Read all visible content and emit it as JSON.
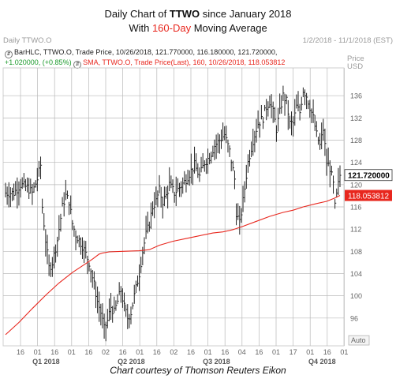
{
  "title": {
    "prefix": "Daily Chart of ",
    "ticker": "TTWO",
    "suffix": " since January 2018",
    "line2_prefix": "With ",
    "line2_highlight": "160-Day",
    "line2_suffix": " Moving Average"
  },
  "header": {
    "left": "Daily TTWO.O",
    "right": "1/2/2018 - 11/1/2018 (EST)",
    "price_unit_line1": "Price",
    "price_unit_line2": "USD"
  },
  "legend": {
    "bar_line1": "BarHLC, TTWO.O, Trade Price, 10/26/2018, 121.770000, 116.180000, 121.720000,",
    "bar_line2_change": "+1.020000, (+0.85%)",
    "sma_text": "SMA, TTWO.O, Trade Price(Last), 160, 10/26/2018, 118.053812"
  },
  "auto_label": "Auto",
  "footer": "Chart courtesy of Thomson Reuters Eikon",
  "colors": {
    "sma_line": "#e8271e",
    "bars": "#222222",
    "grid": "#b9b9b9",
    "last_price_bg": "#ffffff",
    "sma_label_bg": "#e8271e"
  },
  "chart_data": {
    "type": "bar",
    "style": "HLC bars",
    "ylim": [
      91,
      141
    ],
    "yticks": [
      96,
      100,
      104,
      108,
      112,
      116,
      120,
      124,
      128,
      132,
      136
    ],
    "xticks": [
      "16",
      "01",
      "16",
      "01",
      "16",
      "02",
      "16",
      "01",
      "16",
      "02",
      "16",
      "01",
      "16",
      "04",
      "16",
      "01",
      "17",
      "01",
      "16",
      "01"
    ],
    "quarter_labels": [
      "Q1 2018",
      "Q2 2018",
      "Q3 2018",
      "Q4 2018"
    ],
    "last_price_label": "121.720000",
    "sma_label": "118.053812",
    "grid": true,
    "series": [
      {
        "name": "SMA, TTWO.O, Trade Price(Last), 160",
        "kind": "line",
        "points": [
          [
            0,
            93
          ],
          [
            8,
            95.2
          ],
          [
            16,
            97.7
          ],
          [
            24,
            100.1
          ],
          [
            32,
            102.3
          ],
          [
            40,
            104.2
          ],
          [
            48,
            105.8
          ],
          [
            52,
            106.6
          ],
          [
            56,
            107.5
          ],
          [
            58,
            107.7
          ],
          [
            62,
            107.9
          ],
          [
            70,
            108.0
          ],
          [
            80,
            108.1
          ],
          [
            86,
            108.3
          ],
          [
            92,
            109.1
          ],
          [
            100,
            109.8
          ],
          [
            108,
            110.3
          ],
          [
            116,
            110.8
          ],
          [
            124,
            111.3
          ],
          [
            130,
            111.5
          ],
          [
            136,
            111.9
          ],
          [
            142,
            112.5
          ],
          [
            150,
            113.4
          ],
          [
            158,
            114.3
          ],
          [
            166,
            115.0
          ],
          [
            172,
            115.4
          ],
          [
            178,
            116.0
          ],
          [
            186,
            116.6
          ],
          [
            192,
            117.0
          ],
          [
            197,
            117.6
          ],
          [
            200,
            118.054
          ]
        ]
      },
      {
        "name": "BarHLC, TTWO.O, Trade Price",
        "kind": "hlc",
        "anchors": [
          [
            0,
            118.5
          ],
          [
            5,
            118.5
          ],
          [
            9,
            120
          ],
          [
            13,
            119.5
          ],
          [
            16,
            118.5
          ],
          [
            19,
            121
          ],
          [
            21,
            123.5
          ],
          [
            22,
            116
          ],
          [
            24,
            110
          ],
          [
            26,
            105
          ],
          [
            28,
            106
          ],
          [
            31,
            110
          ],
          [
            34,
            116
          ],
          [
            36,
            118
          ],
          [
            38,
            117
          ],
          [
            40,
            113
          ],
          [
            42,
            111
          ],
          [
            46,
            109
          ],
          [
            50,
            106
          ],
          [
            53,
            102
          ],
          [
            55,
            99
          ],
          [
            57,
            97
          ],
          [
            59,
            94
          ],
          [
            61,
            95.5
          ],
          [
            63,
            98
          ],
          [
            65,
            97
          ],
          [
            67,
            99
          ],
          [
            69,
            101
          ],
          [
            71,
            98
          ],
          [
            73,
            96
          ],
          [
            75,
            97
          ],
          [
            77,
            100
          ],
          [
            80,
            104
          ],
          [
            82,
            108
          ],
          [
            84,
            111
          ],
          [
            86,
            113
          ],
          [
            88,
            116
          ],
          [
            90,
            117
          ],
          [
            92,
            119
          ],
          [
            94,
            117
          ],
          [
            96,
            118
          ],
          [
            98,
            120
          ],
          [
            101,
            118.5
          ],
          [
            104,
            119.5
          ],
          [
            107,
            120.5
          ],
          [
            110,
            122
          ],
          [
            113,
            123.5
          ],
          [
            116,
            121.5
          ],
          [
            119,
            124
          ],
          [
            122,
            125
          ],
          [
            125,
            127
          ],
          [
            128,
            128
          ],
          [
            131,
            129
          ],
          [
            134,
            126
          ],
          [
            137,
            121
          ],
          [
            138,
            115
          ],
          [
            140,
            113
          ],
          [
            142,
            117
          ],
          [
            145,
            124
          ],
          [
            148,
            128
          ],
          [
            151,
            131
          ],
          [
            154,
            132
          ],
          [
            156,
            134
          ],
          [
            158,
            135
          ],
          [
            160,
            133
          ],
          [
            162,
            130
          ],
          [
            164,
            133
          ],
          [
            166,
            136
          ],
          [
            168,
            135
          ],
          [
            170,
            131
          ],
          [
            172,
            131
          ],
          [
            174,
            134
          ],
          [
            176,
            133
          ],
          [
            178,
            137
          ],
          [
            180,
            136
          ],
          [
            182,
            134
          ],
          [
            184,
            132
          ],
          [
            186,
            129
          ],
          [
            188,
            127
          ],
          [
            190,
            130
          ],
          [
            192,
            124
          ],
          [
            194,
            123
          ],
          [
            196,
            120
          ],
          [
            197,
            116
          ],
          [
            198,
            118
          ],
          [
            199,
            120
          ],
          [
            200,
            121.72
          ]
        ]
      }
    ]
  }
}
